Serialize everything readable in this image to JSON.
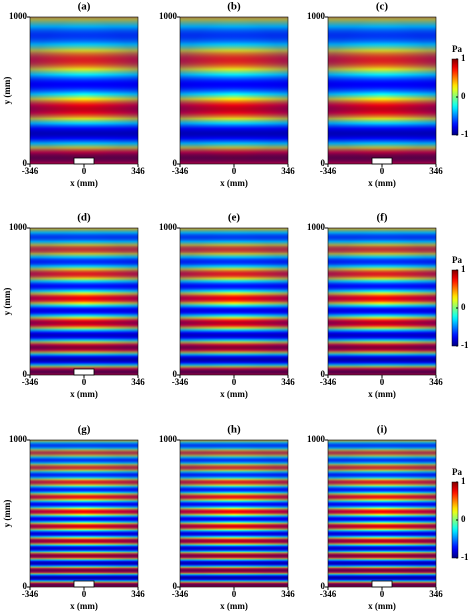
{
  "chart_data": [
    {
      "type": "heatmap",
      "title": "(a)",
      "xlabel": "x (mm)",
      "ylabel": "y (mm)",
      "xlim": [
        -346,
        346
      ],
      "xticks": [
        -346,
        0,
        346
      ],
      "ylim": [
        0,
        1000
      ],
      "yticks": [
        0,
        1000
      ]
    },
    {
      "type": "heatmap",
      "title": "(b)",
      "xlabel": "x (mm)",
      "xlim": [
        -346,
        346
      ],
      "xticks": [
        -346,
        0,
        346
      ],
      "ylim": [
        0,
        1000
      ],
      "yticks": [
        0,
        1000
      ]
    },
    {
      "type": "heatmap",
      "title": "(c)",
      "xlabel": "x (mm)",
      "xlim": [
        -346,
        346
      ],
      "xticks": [
        -346,
        0,
        346
      ],
      "ylim": [
        0,
        1000
      ],
      "yticks": [
        0,
        1000
      ],
      "colorbar": {
        "label": "Pa",
        "lim": [
          -1,
          1
        ],
        "ticks": [
          -1,
          0,
          1
        ]
      }
    },
    {
      "type": "heatmap",
      "title": "(d)",
      "xlabel": "x (mm)",
      "ylabel": "y (mm)",
      "xlim": [
        -346,
        346
      ],
      "xticks": [
        -346,
        0,
        346
      ],
      "ylim": [
        0,
        1000
      ],
      "yticks": [
        0,
        1000
      ]
    },
    {
      "type": "heatmap",
      "title": "(e)",
      "xlabel": "x (mm)",
      "xlim": [
        -346,
        346
      ],
      "xticks": [
        -346,
        0,
        346
      ],
      "ylim": [
        0,
        1000
      ],
      "yticks": [
        0,
        1000
      ]
    },
    {
      "type": "heatmap",
      "title": "(f)",
      "xlabel": "x (mm)",
      "xlim": [
        -346,
        346
      ],
      "xticks": [
        -346,
        0,
        346
      ],
      "ylim": [
        0,
        1000
      ],
      "yticks": [
        0,
        1000
      ],
      "colorbar": {
        "label": "Pa",
        "lim": [
          -1,
          1
        ],
        "ticks": [
          -1,
          0,
          1
        ]
      }
    },
    {
      "type": "heatmap",
      "title": "(g)",
      "xlabel": "x (mm)",
      "ylabel": "y (mm)",
      "xlim": [
        -346,
        346
      ],
      "xticks": [
        -346,
        0,
        346
      ],
      "ylim": [
        0,
        1000
      ],
      "yticks": [
        0,
        1000
      ]
    },
    {
      "type": "heatmap",
      "title": "(h)",
      "xlabel": "x (mm)",
      "xlim": [
        -346,
        346
      ],
      "xticks": [
        -346,
        0,
        346
      ],
      "ylim": [
        0,
        1000
      ],
      "yticks": [
        0,
        1000
      ]
    },
    {
      "type": "heatmap",
      "title": "(i)",
      "xlabel": "x (mm)",
      "xlim": [
        -346,
        346
      ],
      "xticks": [
        -346,
        0,
        346
      ],
      "ylim": [
        0,
        1000
      ],
      "yticks": [
        0,
        1000
      ],
      "colorbar": {
        "label": "Pa",
        "lim": [
          -1,
          1
        ],
        "ticks": [
          -1,
          0,
          1
        ]
      }
    }
  ]
}
